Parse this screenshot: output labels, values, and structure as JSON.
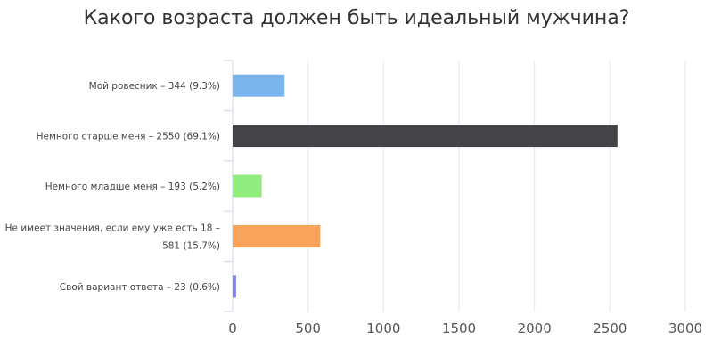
{
  "chart_data": {
    "type": "bar",
    "orientation": "horizontal",
    "title": "Какого возраста должен быть идеальный мужчина?",
    "categories": [
      [
        "Мой ровесник – 344 (9.3%)"
      ],
      [
        "Немного старше меня – 2550 (69.1%)"
      ],
      [
        "Немного младше меня – 193 (5.2%)"
      ],
      [
        "Не имеет значения, если ему уже есть 18 –",
        "581 (15.7%)"
      ],
      [
        "Свой вариант ответа – 23 (0.6%)"
      ]
    ],
    "values": [
      344,
      2550,
      193,
      581,
      23
    ],
    "colors": [
      "#7cb5ec",
      "#434348",
      "#90ed7d",
      "#f7a35c",
      "#8085e9"
    ],
    "xlim": [
      0,
      3000
    ],
    "xticks": [
      "0",
      "500",
      "1000",
      "1500",
      "2000",
      "2500",
      "3000"
    ],
    "grid": true,
    "legend": "none"
  }
}
